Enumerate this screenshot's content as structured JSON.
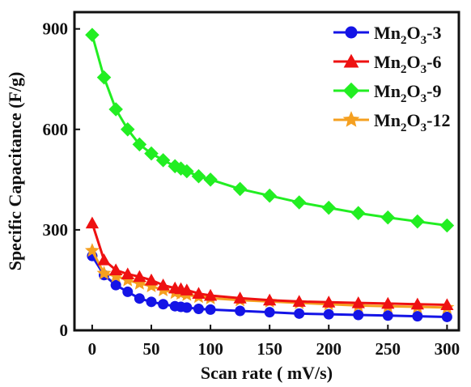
{
  "chart_data": {
    "type": "line",
    "xlabel": "Scan rate ( mV/s)",
    "ylabel": "Specific Capacitance (F/g)",
    "xlim": [
      -15,
      310
    ],
    "ylim": [
      0,
      950
    ],
    "x_ticks": [
      0,
      50,
      100,
      150,
      200,
      250,
      300
    ],
    "y_ticks": [
      0,
      300,
      600,
      900
    ],
    "x_tick_labels": [
      "0",
      "50",
      "100",
      "150",
      "200",
      "250",
      "300"
    ],
    "y_tick_labels": [
      "0",
      "300",
      "600",
      "900"
    ],
    "legend_position": "top-right",
    "grid": false,
    "series": [
      {
        "name": "Mn2O3-3",
        "label_parts": [
          "Mn",
          "2",
          "O",
          "3",
          "-3"
        ],
        "color": "#1414e6",
        "marker": "circle",
        "x": [
          0,
          10,
          20,
          30,
          40,
          50,
          60,
          70,
          75,
          80,
          90,
          100,
          125,
          150,
          175,
          200,
          225,
          250,
          275,
          300
        ],
        "y": [
          222,
          165,
          135,
          115,
          95,
          85,
          78,
          72,
          70,
          68,
          64,
          62,
          58,
          54,
          50,
          48,
          46,
          44,
          42,
          40
        ]
      },
      {
        "name": "Mn2O3-6",
        "label_parts": [
          "Mn",
          "2",
          "O",
          "3",
          "-6"
        ],
        "color": "#ee1111",
        "marker": "triangle",
        "x": [
          0,
          10,
          20,
          30,
          40,
          50,
          60,
          70,
          75,
          80,
          90,
          100,
          125,
          150,
          175,
          200,
          225,
          250,
          275,
          300
        ],
        "y": [
          320,
          210,
          180,
          168,
          160,
          150,
          135,
          126,
          124,
          120,
          110,
          104,
          96,
          90,
          86,
          84,
          82,
          80,
          78,
          76
        ]
      },
      {
        "name": "Mn2O3-9",
        "label_parts": [
          "Mn",
          "2",
          "O",
          "3",
          "-9"
        ],
        "color": "#22ee22",
        "marker": "diamond",
        "x": [
          0,
          10,
          20,
          30,
          40,
          50,
          60,
          70,
          75,
          80,
          90,
          100,
          125,
          150,
          175,
          200,
          225,
          250,
          275,
          300
        ],
        "y": [
          882,
          755,
          660,
          600,
          555,
          528,
          508,
          490,
          483,
          475,
          460,
          450,
          422,
          402,
          382,
          366,
          350,
          337,
          325,
          313
        ]
      },
      {
        "name": "Mn2O3-12",
        "label_parts": [
          "Mn",
          "2",
          "O",
          "3",
          "-12"
        ],
        "color": "#f5a020",
        "marker": "star",
        "x": [
          0,
          10,
          20,
          30,
          40,
          50,
          60,
          70,
          75,
          80,
          90,
          100,
          125,
          150,
          175,
          200,
          225,
          250,
          275,
          300
        ],
        "y": [
          238,
          170,
          162,
          150,
          140,
          132,
          120,
          112,
          110,
          106,
          100,
          96,
          90,
          86,
          82,
          78,
          74,
          72,
          70,
          68
        ]
      }
    ]
  }
}
